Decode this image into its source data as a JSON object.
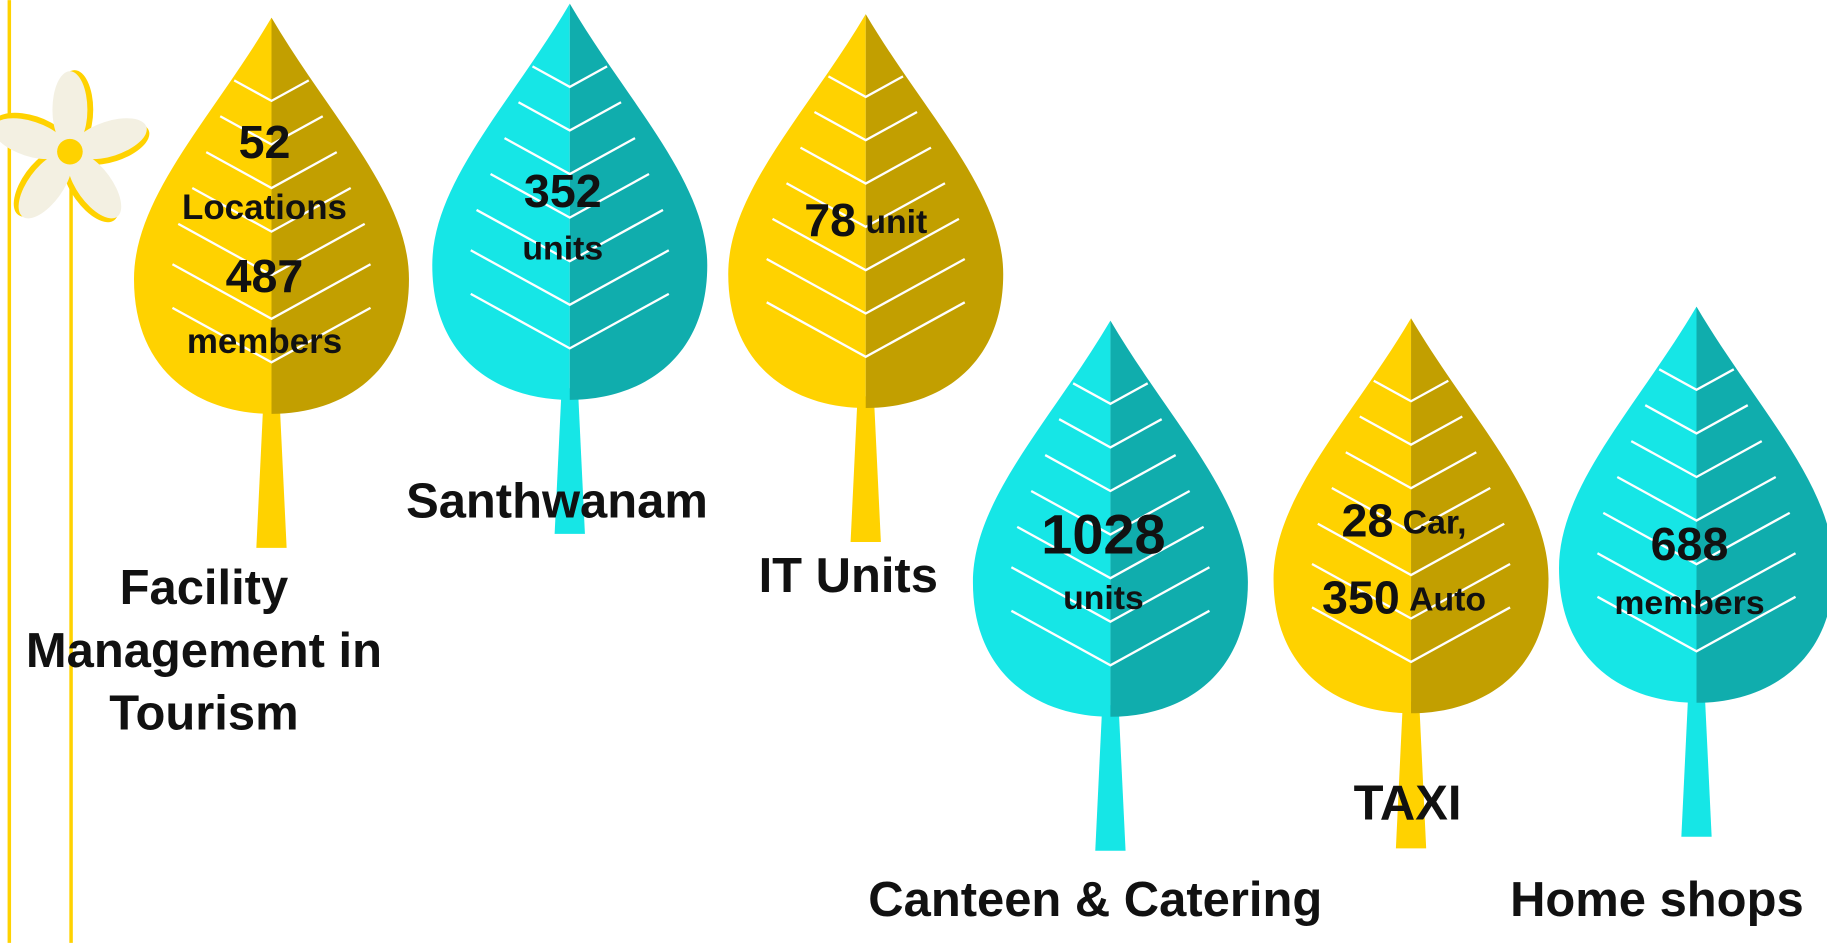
{
  "leaves": [
    {
      "label": [
        "Facility",
        "Management in",
        "Tourism"
      ],
      "color": "#ffd200",
      "shade": "#c29f00",
      "lines": [
        [
          "52"
        ],
        [
          "Locations"
        ],
        [
          "487"
        ],
        [
          "members"
        ]
      ]
    },
    {
      "label": [
        "Santhwanam"
      ],
      "color": "#16e6e6",
      "shade": "#10adad",
      "lines": [
        [
          "352"
        ],
        [
          "units"
        ]
      ]
    },
    {
      "label": [
        "IT Units"
      ],
      "color": "#ffd200",
      "shade": "#c29f00",
      "lines": [
        [
          "78",
          "unit"
        ]
      ]
    },
    {
      "label": [
        "Canteen & Catering"
      ],
      "color": "#16e6e6",
      "shade": "#10adad",
      "lines": [
        [
          "1028"
        ],
        [
          "units"
        ]
      ]
    },
    {
      "label": [
        "TAXI"
      ],
      "color": "#ffd200",
      "shade": "#c29f00",
      "lines": [
        [
          "28",
          "Car,"
        ],
        [
          "350",
          "Auto"
        ]
      ]
    },
    {
      "label": [
        "Home shops"
      ],
      "color": "#16e6e6",
      "shade": "#10adad",
      "lines": [
        [
          "688"
        ],
        [
          "members"
        ]
      ]
    }
  ]
}
